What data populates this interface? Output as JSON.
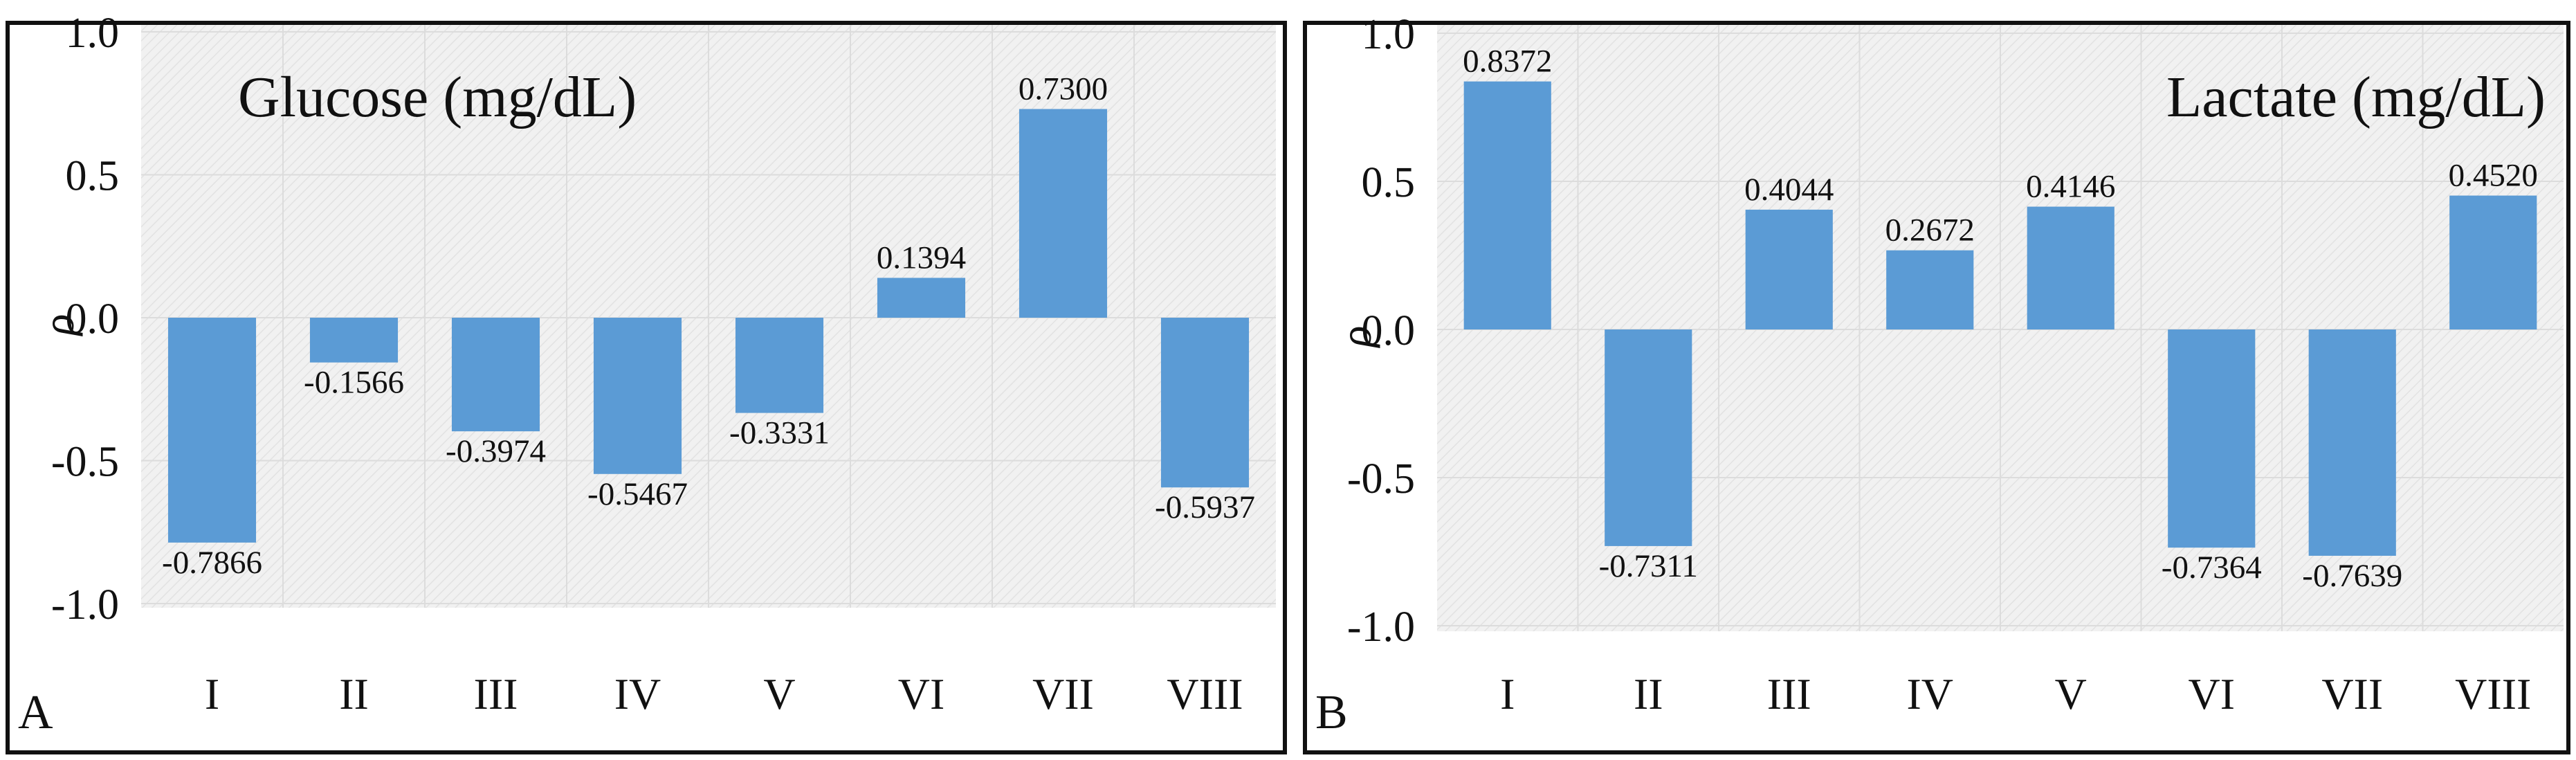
{
  "colors": {
    "bar": "#5b9bd5",
    "plot_bg": "#f1f1f1",
    "hatch": "#e2e2e2",
    "grid": "#dcdcdc",
    "frame": "#111111"
  },
  "chart_data": [
    {
      "type": "bar",
      "panel_label": "A",
      "title": "Glucose (mg/dL)",
      "xlabel": "",
      "ylabel": "ρ",
      "ylim": [
        -1.0,
        1.0
      ],
      "yticks": [
        "1.0",
        "0.5",
        "0.0",
        "-0.5",
        "-1.0"
      ],
      "yticks_values": [
        1.0,
        0.5,
        0.0,
        -0.5,
        -1.0
      ],
      "categories": [
        "I",
        "II",
        "III",
        "IV",
        "V",
        "VI",
        "VII",
        "VIII"
      ],
      "values": [
        -0.7866,
        -0.1566,
        -0.3974,
        -0.5467,
        -0.3331,
        0.1394,
        0.73,
        -0.5937
      ],
      "data_labels": [
        "-0.7866",
        "-0.1566",
        "-0.3974",
        "-0.5467",
        "-0.3331",
        "0.1394",
        "0.7300",
        "-0.5937"
      ],
      "grid": true
    },
    {
      "type": "bar",
      "panel_label": "B",
      "title": "Lactate (mg/dL)",
      "xlabel": "",
      "ylabel": "ρ",
      "ylim": [
        -1.0,
        1.0
      ],
      "yticks": [
        "1.0",
        "0.5",
        "0.0",
        "-0.5",
        "-1.0"
      ],
      "yticks_values": [
        1.0,
        0.5,
        0.0,
        -0.5,
        -1.0
      ],
      "categories": [
        "I",
        "II",
        "III",
        "IV",
        "V",
        "VI",
        "VII",
        "VIII"
      ],
      "values": [
        0.8372,
        -0.7311,
        0.4044,
        0.2672,
        0.4146,
        -0.7364,
        -0.7639,
        0.452
      ],
      "data_labels": [
        "0.8372",
        "-0.7311",
        "0.4044",
        "0.2672",
        "0.4146",
        "-0.7364",
        "-0.7639",
        "0.4520"
      ],
      "grid": true
    }
  ]
}
